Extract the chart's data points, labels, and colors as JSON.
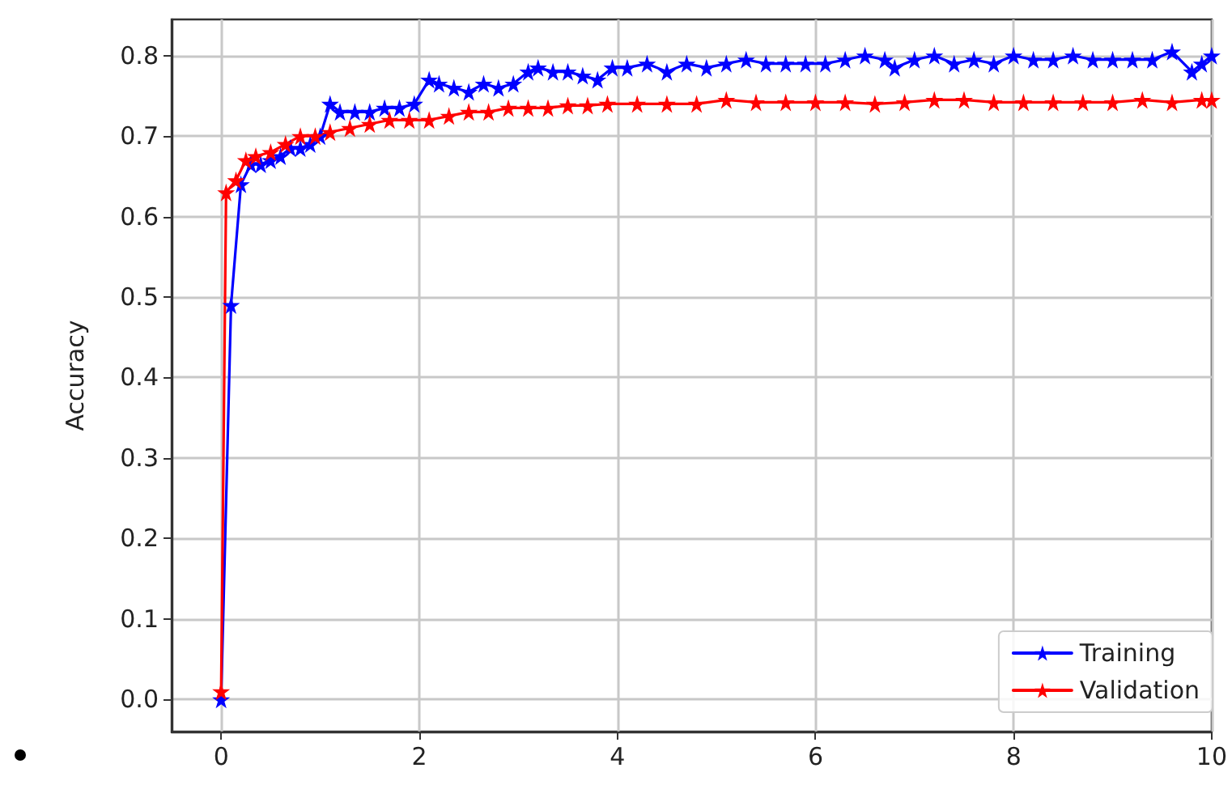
{
  "chart_data": {
    "type": "line",
    "ylabel": "Accuracy",
    "xlim": [
      -0.5,
      10
    ],
    "xticks": [
      0,
      2,
      4,
      6,
      8,
      10
    ],
    "ylim": [
      -0.04,
      0.845
    ],
    "yticks": [
      {
        "value": 0,
        "label": "0.0"
      },
      0.1,
      0.2,
      0.3,
      0.4,
      0.5,
      0.6,
      0.7,
      0.8
    ],
    "grid": true,
    "legend": "bottom right",
    "marker": "star",
    "line_style": "solid",
    "series": [
      {
        "name": "Training",
        "color": "#0000ff",
        "x": [
          0,
          0.1,
          0.2,
          0.3,
          0.4,
          0.5,
          0.6,
          0.7,
          0.8,
          0.9,
          1.0,
          1.1,
          1.2,
          1.35,
          1.5,
          1.65,
          1.8,
          1.95,
          2.1,
          2.2,
          2.35,
          2.5,
          2.65,
          2.8,
          2.95,
          3.1,
          3.2,
          3.35,
          3.5,
          3.65,
          3.8,
          3.95,
          4.1,
          4.3,
          4.5,
          4.7,
          4.9,
          5.1,
          5.3,
          5.5,
          5.7,
          5.9,
          6.1,
          6.3,
          6.5,
          6.7,
          6.8,
          7.0,
          7.2,
          7.4,
          7.6,
          7.8,
          8.0,
          8.2,
          8.4,
          8.6,
          8.8,
          9.0,
          9.2,
          9.4,
          9.6,
          9.8,
          9.9,
          10.0
        ],
        "values": [
          0.0,
          0.49,
          0.64,
          0.665,
          0.665,
          0.67,
          0.675,
          0.685,
          0.685,
          0.69,
          0.7,
          0.74,
          0.73,
          0.73,
          0.73,
          0.735,
          0.735,
          0.74,
          0.77,
          0.765,
          0.76,
          0.755,
          0.765,
          0.76,
          0.765,
          0.78,
          0.785,
          0.78,
          0.78,
          0.775,
          0.77,
          0.785,
          0.785,
          0.79,
          0.78,
          0.79,
          0.785,
          0.79,
          0.795,
          0.79,
          0.79,
          0.79,
          0.79,
          0.795,
          0.8,
          0.795,
          0.785,
          0.795,
          0.8,
          0.79,
          0.795,
          0.79,
          0.8,
          0.795,
          0.795,
          0.8,
          0.795,
          0.795,
          0.795,
          0.795,
          0.805,
          0.78,
          0.79,
          0.8
        ]
      },
      {
        "name": "Validation",
        "color": "#ff0000",
        "x": [
          0,
          0.05,
          0.15,
          0.25,
          0.35,
          0.5,
          0.65,
          0.8,
          0.95,
          1.1,
          1.3,
          1.5,
          1.7,
          1.9,
          2.1,
          2.3,
          2.5,
          2.7,
          2.9,
          3.1,
          3.3,
          3.5,
          3.7,
          3.9,
          4.2,
          4.5,
          4.8,
          5.1,
          5.4,
          5.7,
          6.0,
          6.3,
          6.6,
          6.9,
          7.2,
          7.5,
          7.8,
          8.1,
          8.4,
          8.7,
          9.0,
          9.3,
          9.6,
          9.9,
          10.0
        ],
        "values": [
          0.01,
          0.63,
          0.645,
          0.67,
          0.675,
          0.68,
          0.69,
          0.7,
          0.7,
          0.705,
          0.71,
          0.715,
          0.72,
          0.72,
          0.72,
          0.725,
          0.73,
          0.73,
          0.735,
          0.735,
          0.735,
          0.738,
          0.738,
          0.74,
          0.74,
          0.74,
          0.74,
          0.745,
          0.742,
          0.742,
          0.742,
          0.742,
          0.74,
          0.742,
          0.745,
          0.745,
          0.742,
          0.742,
          0.742,
          0.742,
          0.742,
          0.745,
          0.742,
          0.745,
          0.745
        ]
      }
    ]
  }
}
